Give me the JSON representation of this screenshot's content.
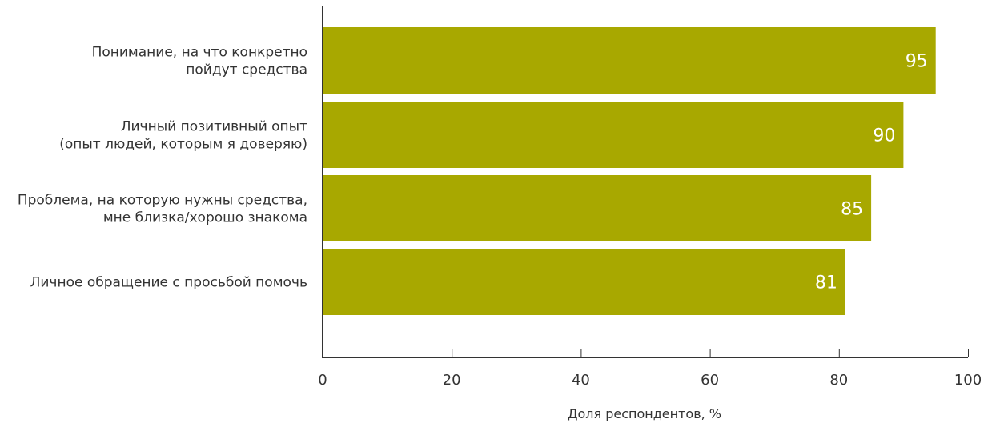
{
  "chart_data": {
    "type": "bar",
    "orientation": "horizontal",
    "categories": [
      [
        "Понимание, на что конкретно",
        "пойдут средства"
      ],
      [
        "Личный позитивный опыт",
        "(опыт людей, которым я доверяю)"
      ],
      [
        "Проблема, на которую нужны средства,",
        "мне близка/хорошо знакома"
      ],
      [
        "Личное обращение с просьбой помочь"
      ]
    ],
    "values": [
      95,
      90,
      85,
      81
    ],
    "value_labels": [
      "95",
      "90",
      "85",
      "81"
    ],
    "xlabel": "Доля респондентов, %",
    "ylabel": "",
    "xlim": [
      0,
      100
    ],
    "xticks": [
      0,
      20,
      40,
      60,
      80,
      100
    ],
    "grid": false,
    "colors": {
      "bar": "#a8a800",
      "value_text": "#ffffff",
      "axis": "#333333"
    }
  }
}
